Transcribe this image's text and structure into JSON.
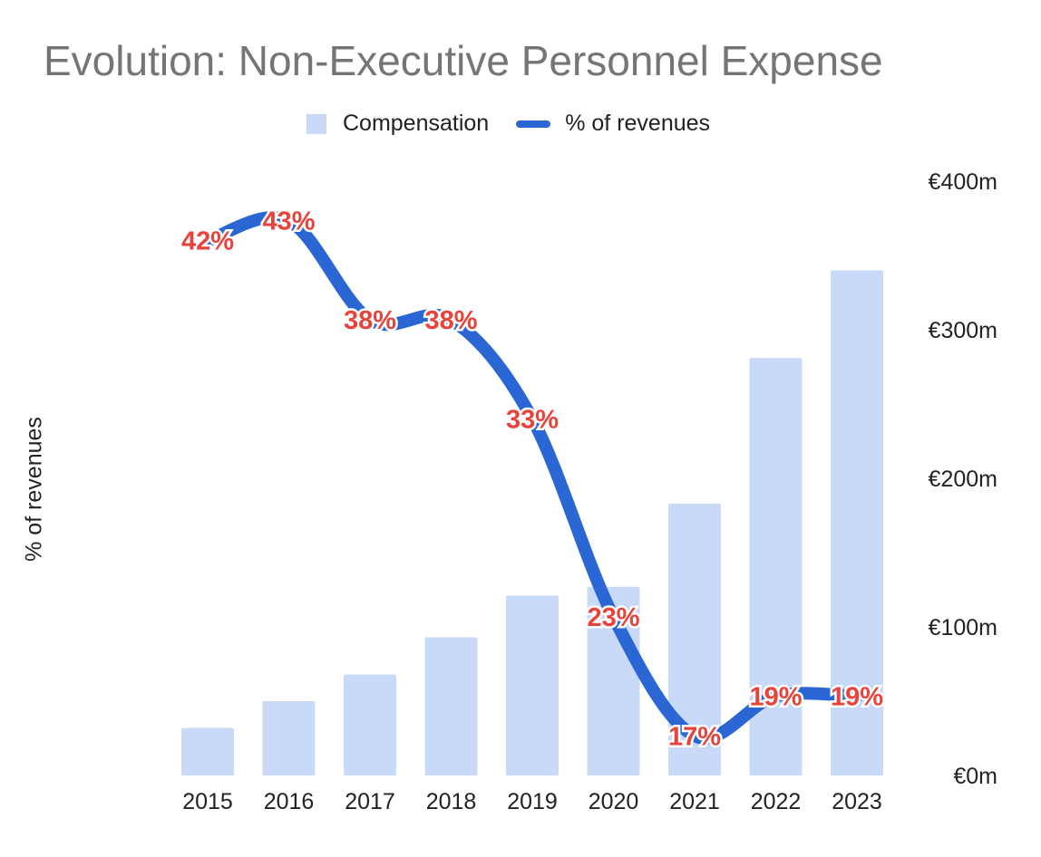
{
  "chart_data": {
    "type": "bar",
    "title": "Evolution: Non-Executive Personnel Expense",
    "categories": [
      "2015",
      "2016",
      "2017",
      "2018",
      "2019",
      "2020",
      "2021",
      "2022",
      "2023"
    ],
    "series": [
      {
        "name": "Compensation",
        "type": "bar",
        "axis": "right",
        "values": [
          32,
          50,
          68,
          93,
          121,
          127,
          183,
          281,
          340
        ]
      },
      {
        "name": "% of revenues",
        "type": "line",
        "axis": "left",
        "values": [
          42,
          43,
          38,
          38,
          33,
          23,
          17,
          19,
          19
        ],
        "labels": [
          "42%",
          "43%",
          "38%",
          "38%",
          "33%",
          "23%",
          "17%",
          "19%",
          "19%"
        ]
      }
    ],
    "ylabel_left": "% of revenues",
    "right_axis": {
      "ylim": [
        0,
        400
      ],
      "ticks": [
        0,
        100,
        200,
        300,
        400
      ],
      "tick_labels": [
        "€0m",
        "€100m",
        "€200m",
        "€300m",
        "€400m"
      ]
    },
    "left_axis": {
      "ylim": [
        15,
        45
      ]
    },
    "legend_position": "top-center",
    "grid": false,
    "colors": {
      "bar": "#c9daf8",
      "line": "#2a67d5",
      "data_label": "#e8423a"
    }
  }
}
